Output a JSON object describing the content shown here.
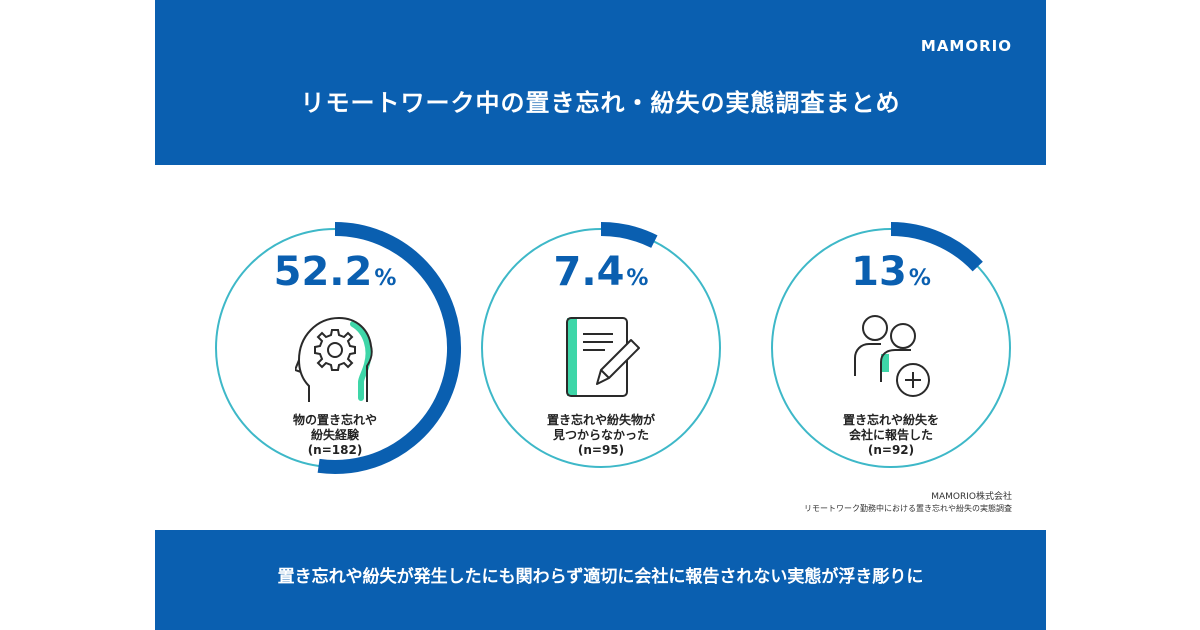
{
  "header": {
    "logo": "MAMORIO",
    "title": "リモートワーク中の置き忘れ・紛失の実態調査まとめ"
  },
  "colors": {
    "brand_blue": "#0a5fb0",
    "ring_teal": "#3eb8c8",
    "accent_green": "#3ed6a8"
  },
  "chart_data": {
    "type": "pie",
    "values": [
      52.2,
      7.4,
      13
    ],
    "categories": [
      "物の置き忘れや紛失経験",
      "置き忘れや紛失物が見つからなかった",
      "置き忘れや紛失を会社に報告した"
    ]
  },
  "stats": [
    {
      "number": "52.2",
      "unit": "%",
      "label_lines": [
        "物の置き忘れや",
        "紛失経験",
        "(n=182)"
      ],
      "icon": "head-gear-icon"
    },
    {
      "number": "7.4",
      "unit": "%",
      "label_lines": [
        "置き忘れや紛失物が",
        "見つからなかった",
        "(n=95)"
      ],
      "icon": "notepad-pen-icon"
    },
    {
      "number": "13",
      "unit": "%",
      "label_lines": [
        "置き忘れや紛失を",
        "会社に報告した",
        "(n=92)"
      ],
      "icon": "people-plus-icon"
    }
  ],
  "source": {
    "company": "MAMORIO株式会社",
    "survey": "リモートワーク勤務中における置き忘れや紛失の実態調査"
  },
  "footer": {
    "text": "置き忘れや紛失が発生したにも関わらず適切に会社に報告されない実態が浮き彫りに"
  }
}
